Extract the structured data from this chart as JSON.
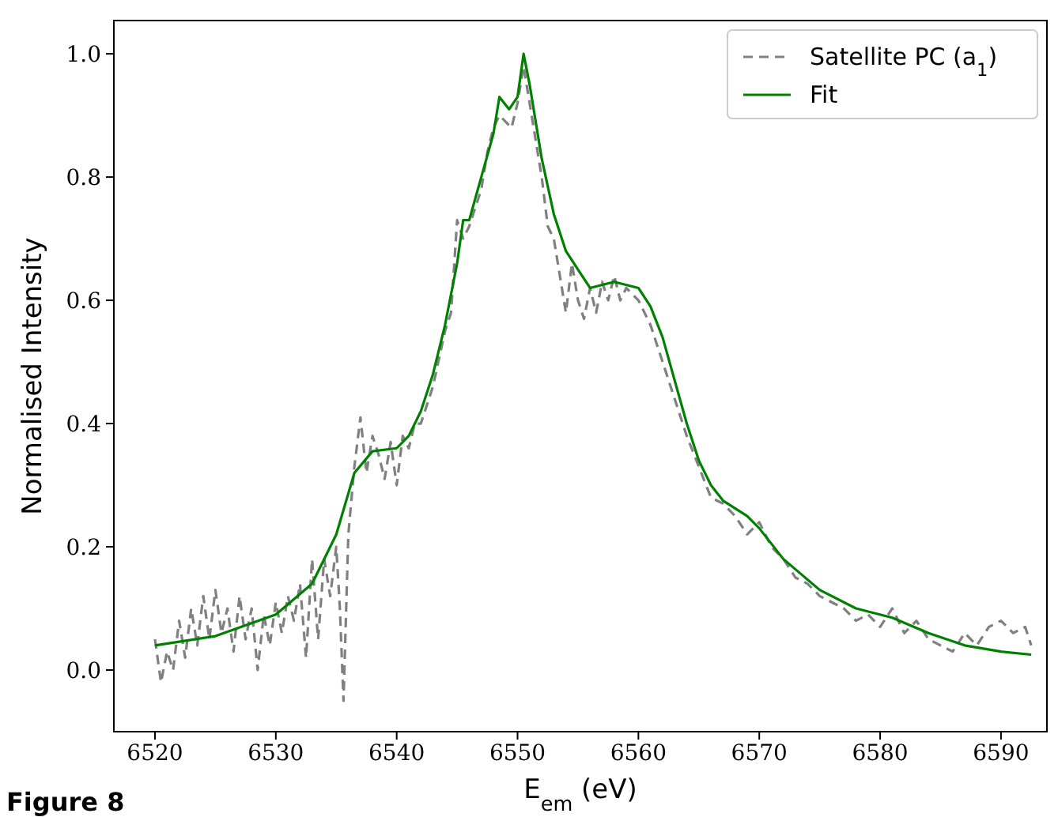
{
  "chart_data": {
    "type": "line",
    "xlabel": "E$_{em}$ (eV)",
    "ylabel": "Normalised Intensity",
    "xlim": [
      6516.6,
      6593.8
    ],
    "ylim": [
      -0.1,
      1.054
    ],
    "xticks": [
      6520,
      6530,
      6540,
      6550,
      6560,
      6570,
      6580,
      6590
    ],
    "yticks": [
      {
        "value": 0,
        "label": "0.0"
      },
      {
        "value": 0.2,
        "label": "0.2"
      },
      {
        "value": 0.4,
        "label": "0.4"
      },
      {
        "value": 0.6,
        "label": "0.6"
      },
      {
        "value": 0.8,
        "label": "0.8"
      },
      {
        "value": 1,
        "label": "1.0"
      }
    ],
    "legend": "top right",
    "annotations": [
      "Figure 8"
    ],
    "series": [
      {
        "name": "Satellite PC (a$_{1}$)",
        "color": "#808080",
        "line_style": "dashed",
        "x": [
          6520,
          6520.5,
          6521,
          6521.5,
          6522,
          6522.5,
          6523,
          6523.5,
          6524,
          6524.5,
          6525,
          6525.5,
          6526,
          6526.5,
          6527,
          6527.5,
          6528,
          6528.5,
          6529,
          6529.5,
          6530,
          6530.5,
          6531,
          6531.5,
          6532,
          6532.5,
          6533,
          6533.5,
          6534,
          6534.5,
          6535,
          6535.3,
          6535.6,
          6536,
          6536.5,
          6537,
          6537.5,
          6538,
          6538.5,
          6539,
          6539.5,
          6540,
          6540.5,
          6541,
          6541.5,
          6542,
          6543,
          6544,
          6544.5,
          6545,
          6545.5,
          6546,
          6547,
          6547.5,
          6548,
          6548.5,
          6549,
          6549.5,
          6550,
          6550.5,
          6551,
          6551.5,
          6552,
          6552.5,
          6553,
          6553.5,
          6554,
          6554.5,
          6555,
          6555.5,
          6556,
          6556.5,
          6557,
          6557.5,
          6558,
          6558.5,
          6559,
          6560,
          6560.5,
          6561,
          6561.5,
          6562,
          6562.5,
          6563,
          6564,
          6565,
          6566,
          6567,
          6568,
          6569,
          6570,
          6571,
          6572,
          6573,
          6574,
          6575,
          6576,
          6577,
          6578,
          6579,
          6580,
          6581,
          6582,
          6583,
          6584,
          6585,
          6586,
          6587,
          6588,
          6589,
          6590,
          6591,
          6592,
          6592.5
        ],
        "values": [
          0.05,
          -0.02,
          0.03,
          0.0,
          0.08,
          0.02,
          0.1,
          0.04,
          0.12,
          0.05,
          0.13,
          0.06,
          0.1,
          0.03,
          0.12,
          0.05,
          0.1,
          0.0,
          0.09,
          0.04,
          0.11,
          0.06,
          0.12,
          0.08,
          0.14,
          0.02,
          0.18,
          0.05,
          0.18,
          0.12,
          0.2,
          0.1,
          -0.05,
          0.22,
          0.33,
          0.41,
          0.32,
          0.38,
          0.35,
          0.31,
          0.37,
          0.3,
          0.38,
          0.36,
          0.4,
          0.4,
          0.46,
          0.55,
          0.58,
          0.73,
          0.7,
          0.72,
          0.78,
          0.84,
          0.88,
          0.9,
          0.89,
          0.88,
          0.92,
          0.98,
          0.92,
          0.86,
          0.8,
          0.72,
          0.7,
          0.64,
          0.58,
          0.66,
          0.6,
          0.57,
          0.62,
          0.58,
          0.63,
          0.6,
          0.64,
          0.6,
          0.62,
          0.6,
          0.58,
          0.56,
          0.53,
          0.5,
          0.47,
          0.44,
          0.38,
          0.33,
          0.28,
          0.27,
          0.25,
          0.22,
          0.24,
          0.2,
          0.18,
          0.15,
          0.14,
          0.12,
          0.11,
          0.1,
          0.08,
          0.09,
          0.07,
          0.1,
          0.06,
          0.08,
          0.05,
          0.04,
          0.03,
          0.06,
          0.04,
          0.07,
          0.08,
          0.06,
          0.07,
          0.04
        ]
      },
      {
        "name": "Fit",
        "color": "#008000",
        "line_style": "solid",
        "x": [
          6520,
          6525,
          6530,
          6533,
          6535,
          6536.5,
          6538,
          6540,
          6541,
          6542,
          6543,
          6544,
          6545,
          6545.5,
          6546,
          6547,
          6548,
          6548.5,
          6549.3,
          6550,
          6550.5,
          6551,
          6552,
          6553,
          6554,
          6555,
          6556,
          6558,
          6560,
          6561,
          6562,
          6563,
          6564,
          6565,
          6566,
          6567,
          6569,
          6570,
          6572,
          6575,
          6578,
          6581,
          6584,
          6587,
          6590,
          6592.5
        ],
        "values": [
          0.04,
          0.055,
          0.09,
          0.14,
          0.22,
          0.32,
          0.355,
          0.36,
          0.38,
          0.42,
          0.48,
          0.56,
          0.66,
          0.73,
          0.73,
          0.8,
          0.87,
          0.93,
          0.91,
          0.93,
          1.0,
          0.95,
          0.83,
          0.74,
          0.68,
          0.65,
          0.62,
          0.63,
          0.62,
          0.59,
          0.54,
          0.47,
          0.4,
          0.34,
          0.3,
          0.275,
          0.25,
          0.23,
          0.18,
          0.13,
          0.1,
          0.085,
          0.06,
          0.04,
          0.03,
          0.025
        ]
      }
    ]
  }
}
